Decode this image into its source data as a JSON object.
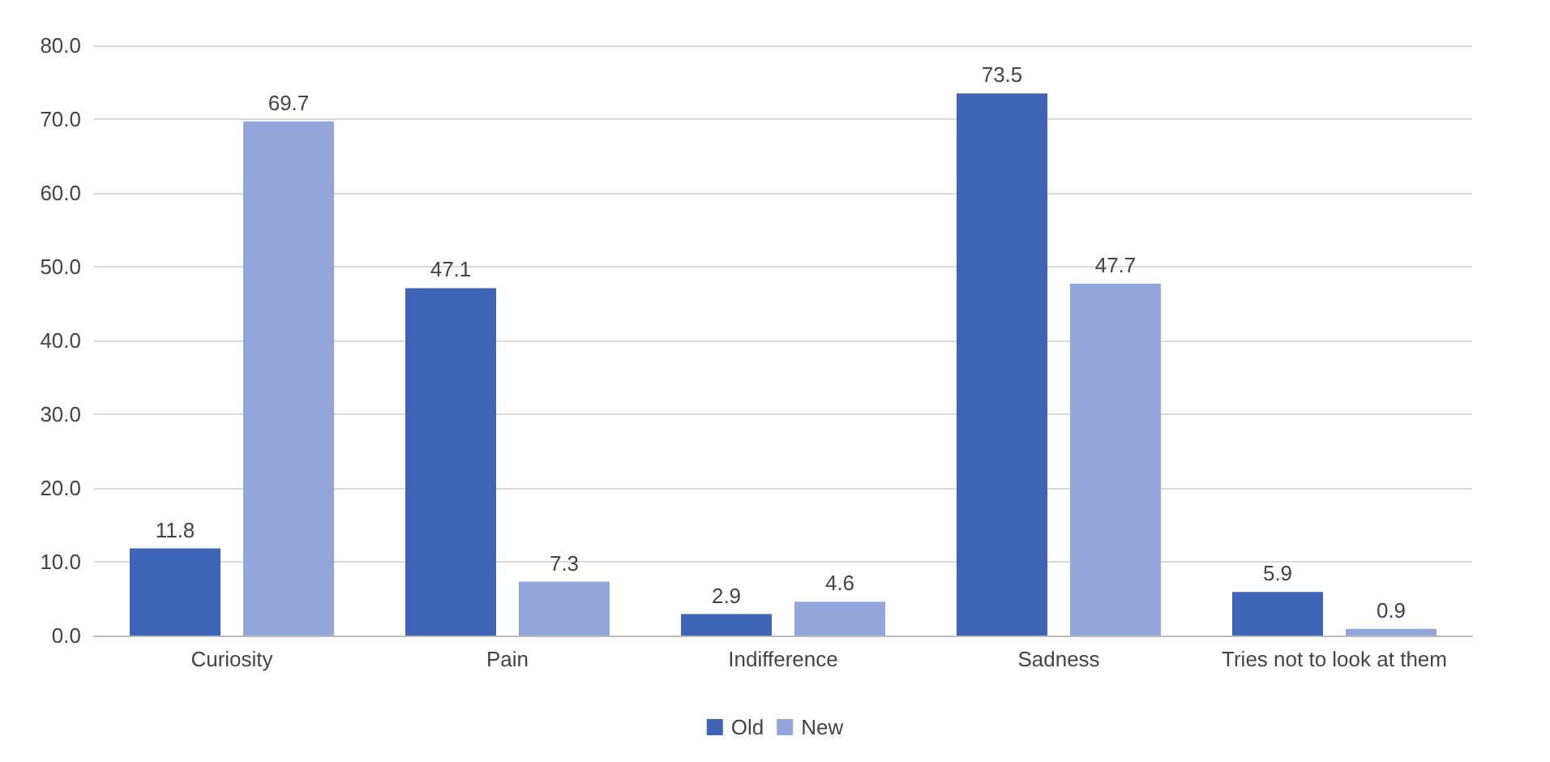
{
  "chart_data": {
    "type": "bar",
    "categories": [
      "Curiosity",
      "Pain",
      "Indifference",
      "Sadness",
      "Tries not to look at them"
    ],
    "series": [
      {
        "name": "Old",
        "color": "#3f63b5",
        "values": [
          11.8,
          47.1,
          2.9,
          73.5,
          5.9
        ]
      },
      {
        "name": "New",
        "color": "#93a6da",
        "values": [
          69.7,
          7.3,
          4.6,
          47.7,
          0.9
        ]
      }
    ],
    "ylim": [
      0,
      80
    ],
    "yticks": [
      {
        "value": 0,
        "label": "0.0"
      },
      {
        "value": 10,
        "label": "10.0"
      },
      {
        "value": 20,
        "label": "20.0"
      },
      {
        "value": 30,
        "label": "30.0"
      },
      {
        "value": 40,
        "label": "40.0"
      },
      {
        "value": 50,
        "label": "50.0"
      },
      {
        "value": 60,
        "label": "60.0"
      },
      {
        "value": 70,
        "label": "70.0"
      },
      {
        "value": 80,
        "label": "80.0"
      }
    ],
    "grid": "y",
    "legend": "bottom",
    "data_labels": true
  }
}
